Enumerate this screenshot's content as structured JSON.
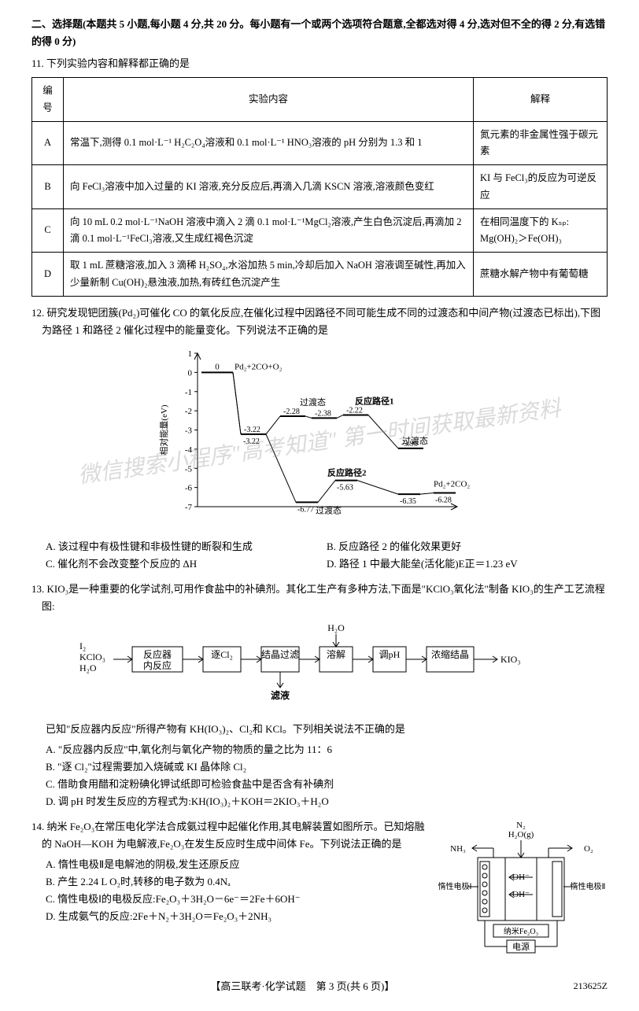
{
  "section": {
    "header": "二、选择题(本题共 5 小题,每小题 4 分,共 20 分。每小题有一个或两个选项符合题意,全都选对得 4 分,选对但不全的得 2 分,有选错的得 0 分)"
  },
  "q11": {
    "number": "11.",
    "stem": "下列实验内容和解释都正确的是",
    "table": {
      "headers": [
        "编号",
        "实验内容",
        "解释"
      ],
      "rows": [
        {
          "id": "A",
          "content": "常温下,测得 0.1 mol·L⁻¹ H₂C₂O₄溶液和 0.1 mol·L⁻¹ HNO₃溶液的 pH 分别为 1.3 和 1",
          "expl": "氮元素的非金属性强于碳元素"
        },
        {
          "id": "B",
          "content": "向 FeCl₃溶液中加入过量的 KI 溶液,充分反应后,再滴入几滴 KSCN 溶液,溶液颜色变红",
          "expl": "KI 与 FeCl₃的反应为可逆反应"
        },
        {
          "id": "C",
          "content": "向 10 mL 0.2 mol·L⁻¹NaOH 溶液中滴入 2 滴 0.1 mol·L⁻¹MgCl₂溶液,产生白色沉淀后,再滴加 2 滴 0.1 mol·L⁻¹FeCl₃溶液,又生成红褐色沉淀",
          "expl": "在相同温度下的 Kₛₚ: Mg(OH)₂＞Fe(OH)₃"
        },
        {
          "id": "D",
          "content": "取 1 mL 蔗糖溶液,加入 3 滴稀 H₂SO₄,水浴加热 5 min,冷却后加入 NaOH 溶液调至碱性,再加入少量新制 Cu(OH)₂悬浊液,加热,有砖红色沉淀产生",
          "expl": "蔗糖水解产物中有葡萄糖"
        }
      ]
    }
  },
  "q12": {
    "number": "12.",
    "stem": "研究发现钯团簇(Pd₂)可催化 CO 的氧化反应,在催化过程中因路径不同可能生成不同的过渡态和中间产物(过渡态已标出),下图为路径 1 和路径 2 催化过程中的能量变化。下列说法不正确的是",
    "chart": {
      "ylabel": "相对能量(eV)",
      "yticks": [
        1,
        0,
        -1,
        -2,
        -3,
        -4,
        -5,
        -6,
        -7
      ],
      "start_label": "Pd₂+2CO+O₂",
      "start_value": 0,
      "path1": {
        "label": "反应路径1",
        "transition_label": "过渡态",
        "points": [
          -3.22,
          -2.28,
          -2.38,
          -2.22,
          -3.96
        ],
        "transition2_label": "过渡态"
      },
      "path2": {
        "label": "反应路径2",
        "transition_label": "过渡态",
        "points": [
          -3.22,
          -6.77,
          -5.63,
          -6.35,
          -6.28
        ]
      },
      "end_label": "Pd₂+2CO₂",
      "watermark": "微信搜索小程序\"高考知道\" 第一时间获取最新资料"
    },
    "options": {
      "A": "该过程中有极性键和非极性键的断裂和生成",
      "B": "反应路径 2 的催化效果更好",
      "C": "催化剂不会改变整个反应的 ΔH",
      "D": "路径 1 中最大能垒(活化能)E正＝1.23 eV"
    }
  },
  "q13": {
    "number": "13.",
    "stem": "KIO₃是一种重要的化学试剂,可用作食盐中的补碘剂。其化工生产有多种方法,下面是\"KClO₃氧化法\"制备 KIO₃的生产工艺流程图:",
    "flow": {
      "inputs": [
        "I₂",
        "KClO₃",
        "H₂O"
      ],
      "boxes": [
        "反应器内反应",
        "逐Cl₂",
        "结晶过滤",
        "溶解",
        "调pH",
        "浓缩结晶"
      ],
      "top_arrow": "H₂O",
      "bottom_arrow": "滤液",
      "output": "KIO₃"
    },
    "known": "已知\"反应器内反应\"所得产物有 KH(IO₃)₂、Cl₂和 KCl。下列相关说法不正确的是",
    "options": {
      "A": "\"反应器内反应\"中,氧化剂与氧化产物的物质的量之比为 11：6",
      "B": "\"逐 Cl₂\"过程需要加入烧碱或 KI 晶体除 Cl₂",
      "C": "借助食用醋和淀粉碘化钾试纸即可检验食盐中是否含有补碘剂",
      "D": "调 pH 时发生反应的方程式为:KH(IO₃)₂＋KOH＝2KIO₃＋H₂O"
    }
  },
  "q14": {
    "number": "14.",
    "stem": "纳米 Fe₂O₃在常压电化学法合成氨过程中起催化作用,其电解装置如图所示。已知熔融的 NaOH—KOH 为电解液,Fe₂O₃在发生反应时生成中间体 Fe。下列说法正确的是",
    "diagram": {
      "labels": {
        "n2": "N₂",
        "h2o": "H₂O(g)",
        "nh3": "NH₃",
        "o2": "O₂",
        "left_electrode": "惰性电极Ⅰ",
        "right_electrode": "惰性电极Ⅱ",
        "ion": "OH⁻",
        "catalyst": "纳米Fe₂O₃",
        "power": "电源"
      }
    },
    "options": {
      "A": "惰性电极Ⅱ是电解池的阴极,发生还原反应",
      "B": "产生 2.24 L O₂时,转移的电子数为 0.4Nₐ",
      "C": "惰性电极Ⅰ的电极反应:Fe₂O₃＋3H₂O－6e⁻＝2Fe＋6OH⁻",
      "D": "生成氨气的反应:2Fe＋N₂＋3H₂O＝Fe₂O₃＋2NH₃"
    }
  },
  "footer": {
    "text": "【高三联考·化学试题　第 3 页(共 6 页)】",
    "code": "213625Z"
  }
}
